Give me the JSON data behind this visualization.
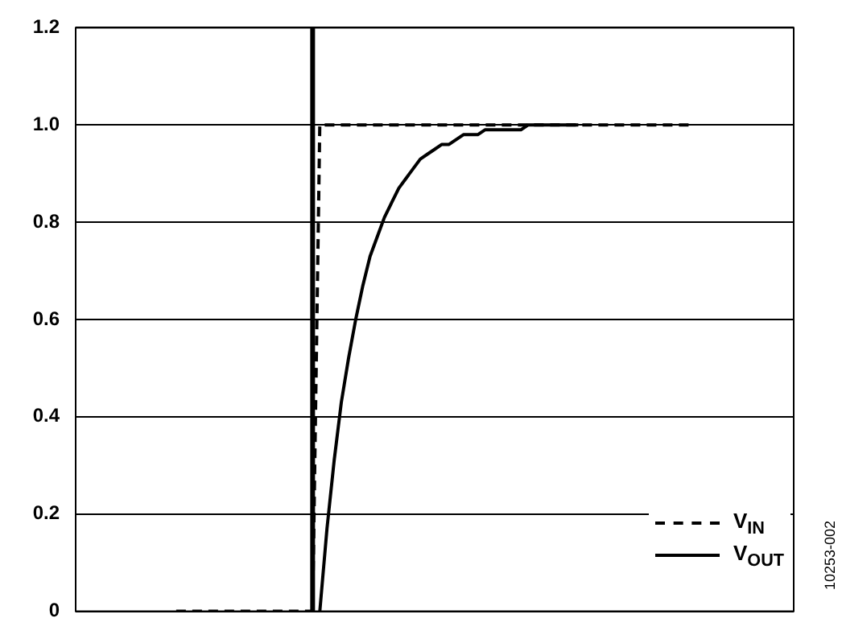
{
  "chart_data": {
    "type": "line",
    "categories": [
      null,
      null,
      null,
      null,
      null,
      null,
      null,
      null,
      null,
      null,
      null,
      null,
      null,
      null,
      null,
      null,
      null,
      null,
      null,
      null,
      null,
      null,
      null,
      null,
      null,
      null,
      null,
      null,
      null,
      null,
      null,
      null,
      null,
      null,
      null,
      null,
      null,
      null,
      null,
      null,
      null,
      null,
      null,
      null,
      null,
      null,
      null,
      null,
      null,
      null,
      null,
      null,
      null,
      null,
      null,
      null,
      null,
      null,
      null,
      null,
      null,
      null,
      null,
      null,
      null,
      null,
      null,
      null,
      null,
      null,
      null,
      null,
      null,
      null,
      null,
      null,
      null,
      null,
      null,
      null,
      null,
      null,
      null,
      null,
      null,
      null,
      null,
      null,
      null,
      null,
      null,
      null,
      null,
      null,
      null,
      null,
      null,
      null,
      null,
      null,
      null
    ],
    "ylim": [
      0,
      1.2
    ],
    "yticks": [
      0,
      0.2,
      0.4,
      0.6,
      0.8,
      {
        "value": 1,
        "label": "1.0"
      },
      1.2
    ],
    "tick_labels": "y",
    "grid": "y",
    "legend": "bottom right",
    "marker": "none",
    "annotations": [
      "10253-002"
    ],
    "series": [
      {
        "name": "V$_{IN}$",
        "color": "#000000",
        "line_style": "dashed",
        "values": [
          null,
          null,
          null,
          null,
          null,
          null,
          null,
          null,
          null,
          null,
          null,
          null,
          null,
          null,
          0,
          0,
          0,
          0,
          0,
          0,
          0,
          0,
          0,
          0,
          0,
          0,
          0,
          0,
          0,
          0,
          0,
          0,
          0,
          0,
          1,
          1,
          1,
          1,
          1,
          1,
          1,
          1,
          1,
          1,
          1,
          1,
          1,
          1,
          1,
          1,
          1,
          1,
          1,
          1,
          1,
          1,
          1,
          1,
          1,
          1,
          1,
          1,
          1,
          1,
          1,
          1,
          1,
          1,
          1,
          1,
          1,
          1,
          1,
          1,
          1,
          1,
          1,
          1,
          1,
          1,
          1,
          1,
          1,
          1,
          1,
          1,
          1,
          null,
          null,
          null,
          null,
          null,
          null,
          null,
          null,
          null,
          null,
          null,
          null,
          null,
          null
        ]
      },
      {
        "name": "V$_{OUT}$",
        "color": "#000000",
        "line_style": "solid",
        "values": [
          null,
          null,
          null,
          null,
          null,
          null,
          null,
          null,
          null,
          null,
          null,
          null,
          null,
          null,
          null,
          null,
          null,
          null,
          null,
          null,
          null,
          null,
          null,
          null,
          null,
          null,
          null,
          null,
          null,
          null,
          null,
          null,
          null,
          null,
          0,
          0.17,
          0.31,
          0.43,
          0.52,
          0.6,
          0.67,
          0.73,
          0.77,
          0.81,
          0.84,
          0.87,
          0.89,
          0.91,
          0.93,
          0.94,
          0.95,
          0.96,
          0.96,
          0.97,
          0.98,
          0.98,
          0.98,
          0.99,
          0.99,
          0.99,
          0.99,
          0.99,
          0.99,
          1,
          1,
          1,
          1,
          1,
          1,
          1,
          1,
          null,
          null,
          null,
          null,
          null,
          null,
          null,
          null,
          null,
          null,
          null,
          null,
          null,
          null,
          null,
          null,
          null,
          null,
          null,
          null,
          null,
          null,
          null,
          null,
          null,
          null,
          null,
          null,
          null,
          null
        ]
      }
    ]
  }
}
